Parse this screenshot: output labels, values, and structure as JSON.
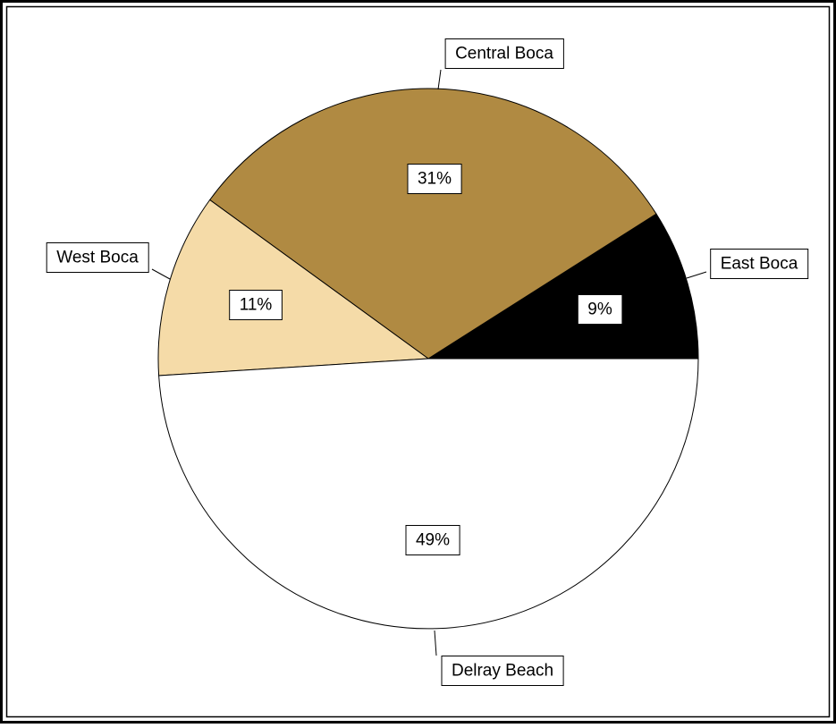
{
  "chart_data": {
    "type": "pie",
    "title": "",
    "slices": [
      {
        "label": "East Boca",
        "value": 9,
        "value_label": "9%",
        "color": "#000000"
      },
      {
        "label": "Central Boca",
        "value": 31,
        "value_label": "31%",
        "color": "#B08A42"
      },
      {
        "label": "West Boca",
        "value": 11,
        "value_label": "11%",
        "color": "#F5DBA8"
      },
      {
        "label": "Delray Beach",
        "value": 49,
        "value_label": "49%",
        "color": "#FFFFFF"
      }
    ],
    "start_angle_direction": "counter-clockwise from 3 o'clock",
    "legend": "none",
    "border": "double black frame"
  }
}
